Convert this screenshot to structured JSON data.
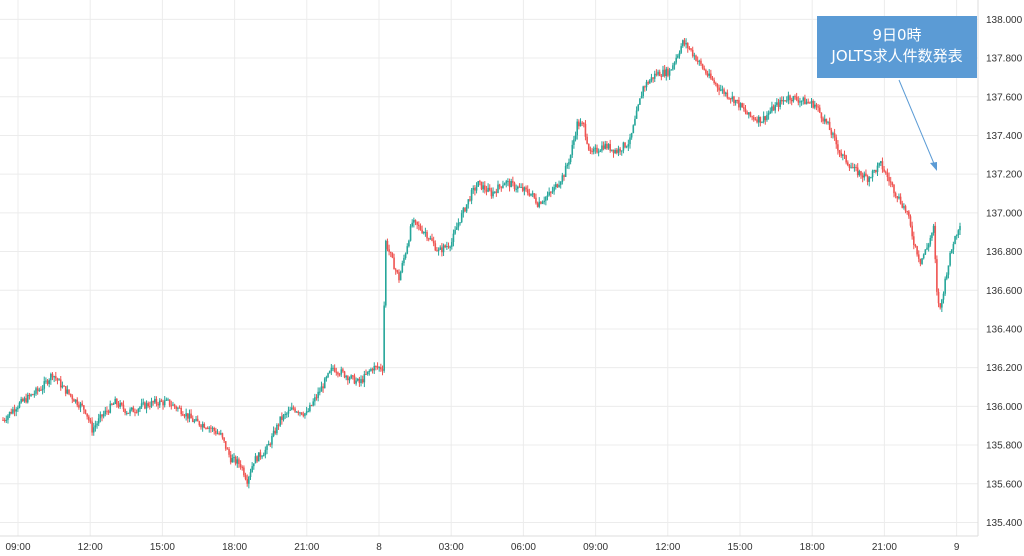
{
  "chart_data": {
    "type": "candlestick",
    "grid": true,
    "ylim": [
      135.33,
      138.1
    ],
    "y_axis_side": "right",
    "y_ticks": [
      "135.400",
      "135.600",
      "135.800",
      "136.000",
      "136.200",
      "136.400",
      "136.600",
      "136.800",
      "137.000",
      "137.200",
      "137.400",
      "137.600",
      "137.800",
      "138.000"
    ],
    "x_ticks": [
      "09:00",
      "12:00",
      "15:00",
      "18:00",
      "21:00",
      "8",
      "03:00",
      "06:00",
      "09:00",
      "12:00",
      "15:00",
      "18:00",
      "21:00",
      "9"
    ],
    "colors": {
      "up": "#26a69a",
      "down": "#ef5350",
      "grid": "#ececec",
      "annotation": "#5b9bd5"
    },
    "price_path": [
      [
        0,
        135.93
      ],
      [
        2,
        136.0
      ],
      [
        4,
        136.05
      ],
      [
        6,
        136.1
      ],
      [
        7.5,
        136.17
      ],
      [
        9,
        136.1
      ],
      [
        11,
        136.03
      ],
      [
        12.5,
        135.98
      ],
      [
        13.5,
        135.88
      ],
      [
        15,
        135.95
      ],
      [
        17,
        136.02
      ],
      [
        19,
        135.97
      ],
      [
        21,
        136.0
      ],
      [
        23,
        136.02
      ],
      [
        25,
        136.02
      ],
      [
        27,
        135.98
      ],
      [
        29,
        135.92
      ],
      [
        31,
        135.9
      ],
      [
        33,
        135.85
      ],
      [
        34.5,
        135.73
      ],
      [
        36,
        135.7
      ],
      [
        37,
        135.62
      ],
      [
        38,
        135.72
      ],
      [
        40,
        135.78
      ],
      [
        42,
        135.93
      ],
      [
        44,
        135.99
      ],
      [
        46,
        135.96
      ],
      [
        48,
        136.08
      ],
      [
        50,
        136.2
      ],
      [
        52,
        136.16
      ],
      [
        54,
        136.12
      ],
      [
        56,
        136.2
      ],
      [
        57.5,
        136.2
      ],
      [
        58,
        136.85
      ],
      [
        59,
        136.75
      ],
      [
        60,
        136.66
      ],
      [
        61,
        136.8
      ],
      [
        62,
        136.95
      ],
      [
        64,
        136.9
      ],
      [
        66,
        136.8
      ],
      [
        68,
        136.85
      ],
      [
        69,
        136.95
      ],
      [
        71,
        137.1
      ],
      [
        72,
        137.15
      ],
      [
        74,
        137.1
      ],
      [
        76,
        137.16
      ],
      [
        78,
        137.13
      ],
      [
        80,
        137.1
      ],
      [
        81,
        137.05
      ],
      [
        83,
        137.1
      ],
      [
        85,
        137.2
      ],
      [
        86,
        137.3
      ],
      [
        87,
        137.46
      ],
      [
        88,
        137.45
      ],
      [
        89,
        137.3
      ],
      [
        91,
        137.35
      ],
      [
        93,
        137.32
      ],
      [
        95,
        137.37
      ],
      [
        97,
        137.65
      ],
      [
        99,
        137.72
      ],
      [
        101,
        137.73
      ],
      [
        103,
        137.88
      ],
      [
        104,
        137.85
      ],
      [
        105,
        137.8
      ],
      [
        107,
        137.7
      ],
      [
        109,
        137.63
      ],
      [
        111,
        137.58
      ],
      [
        113,
        137.5
      ],
      [
        115,
        137.48
      ],
      [
        117,
        137.55
      ],
      [
        119,
        137.6
      ],
      [
        121,
        137.58
      ],
      [
        123,
        137.56
      ],
      [
        125,
        137.45
      ],
      [
        127,
        137.3
      ],
      [
        129,
        137.22
      ],
      [
        131,
        137.18
      ],
      [
        133,
        137.25
      ],
      [
        135,
        137.12
      ],
      [
        137,
        137.0
      ],
      [
        138,
        136.85
      ],
      [
        139,
        136.75
      ],
      [
        140,
        136.82
      ],
      [
        141,
        136.92
      ],
      [
        141.5,
        136.58
      ],
      [
        142,
        136.5
      ],
      [
        143,
        136.7
      ],
      [
        144,
        136.85
      ],
      [
        145,
        136.95
      ]
    ],
    "hour_count": 145
  },
  "annotation": {
    "line1": "9日0時",
    "line2": "JOLTS求人件数発表"
  }
}
